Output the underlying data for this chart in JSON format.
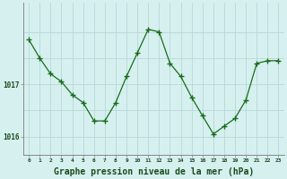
{
  "x": [
    0,
    1,
    2,
    3,
    4,
    5,
    6,
    7,
    8,
    9,
    10,
    11,
    12,
    13,
    14,
    15,
    16,
    17,
    18,
    19,
    20,
    21,
    22,
    23
  ],
  "y": [
    1017.85,
    1017.5,
    1017.2,
    1017.05,
    1016.8,
    1016.65,
    1016.3,
    1016.3,
    1016.65,
    1017.15,
    1017.6,
    1018.05,
    1018.0,
    1017.4,
    1017.15,
    1016.75,
    1016.4,
    1016.05,
    1016.2,
    1016.35,
    1016.7,
    1017.4,
    1017.45,
    1017.45
  ],
  "line_color": "#1a6b1a",
  "marker": "P",
  "marker_size": 2.5,
  "background_color": "#d6f0f0",
  "grid_color": "#b8d8d8",
  "xlabel": "Graphe pression niveau de la mer (hPa)",
  "xlabel_fontsize": 7,
  "tick_label_color": "#1a4a1a",
  "ylim": [
    1015.65,
    1018.55
  ],
  "xlim": [
    -0.5,
    23.5
  ],
  "ytick_positions": [
    1016.0,
    1017.0
  ],
  "ytick_labels": [
    "1016",
    "1017"
  ],
  "xtick_labels": [
    "0",
    "1",
    "2",
    "3",
    "4",
    "5",
    "6",
    "7",
    "8",
    "9",
    "10",
    "11",
    "12",
    "13",
    "14",
    "15",
    "16",
    "17",
    "18",
    "19",
    "20",
    "21",
    "22",
    "23"
  ]
}
